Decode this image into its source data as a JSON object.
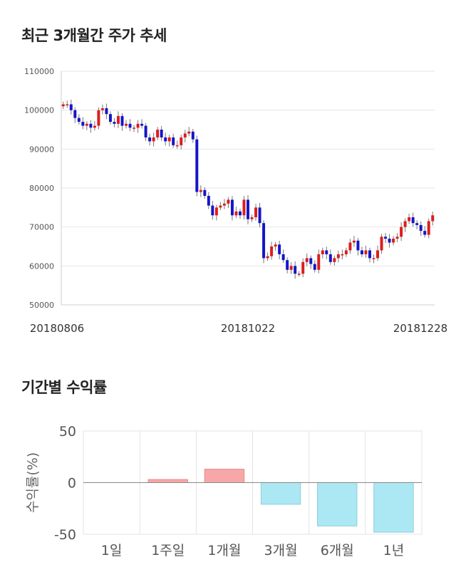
{
  "sections": {
    "price_trend_title": "최근 3개월간 주가 추세",
    "returns_title": "기간별 수익률"
  },
  "colors": {
    "up": "#dd1c1c",
    "down": "#1515c8",
    "positive_bar": "#f7a7a7",
    "negative_bar": "#abe8f3"
  },
  "chart_data": [
    {
      "type": "candlestick",
      "title": "최근 3개월간 주가 추세",
      "ylim": [
        50000,
        110000
      ],
      "y_ticks": [
        110000,
        100000,
        90000,
        80000,
        70000,
        60000,
        50000
      ],
      "x_tick_labels": [
        "20180806",
        "20181022",
        "20181228"
      ],
      "grid": true,
      "close": [
        101500,
        101500,
        100000,
        98000,
        97000,
        96000,
        96500,
        95500,
        96000,
        100000,
        100500,
        99000,
        97000,
        96500,
        98500,
        96000,
        96500,
        95500,
        95500,
        96500,
        96000,
        93000,
        92000,
        93000,
        95000,
        93000,
        92000,
        93000,
        91000,
        91000,
        93000,
        94000,
        94500,
        92500,
        79000,
        79500,
        78000,
        75500,
        73000,
        75000,
        75500,
        76000,
        77000,
        73000,
        74000,
        73000,
        77000,
        72000,
        72500,
        75000,
        71000,
        62000,
        62500,
        65000,
        65500,
        63000,
        61500,
        59000,
        60000,
        58000,
        58000,
        61000,
        62000,
        60500,
        59000,
        63000,
        64000,
        63000,
        61000,
        62000,
        63000,
        63000,
        64000,
        66000,
        66500,
        64000,
        63000,
        64000,
        62000,
        62000,
        64000,
        67500,
        67000,
        66000,
        67000,
        67500,
        70000,
        71500,
        72500,
        71000,
        70500,
        69000,
        68000,
        71500,
        73000
      ]
    },
    {
      "type": "bar",
      "title": "기간별 수익률",
      "categories": [
        "1일",
        "1주일",
        "1개월",
        "3개월",
        "6개월",
        "1년"
      ],
      "values": [
        0,
        3,
        13,
        -21,
        -42,
        -48
      ],
      "ylabel": "수익률(%)",
      "ylim": [
        -50,
        50
      ],
      "y_ticks": [
        50,
        0,
        -50
      ],
      "grid": true
    }
  ]
}
